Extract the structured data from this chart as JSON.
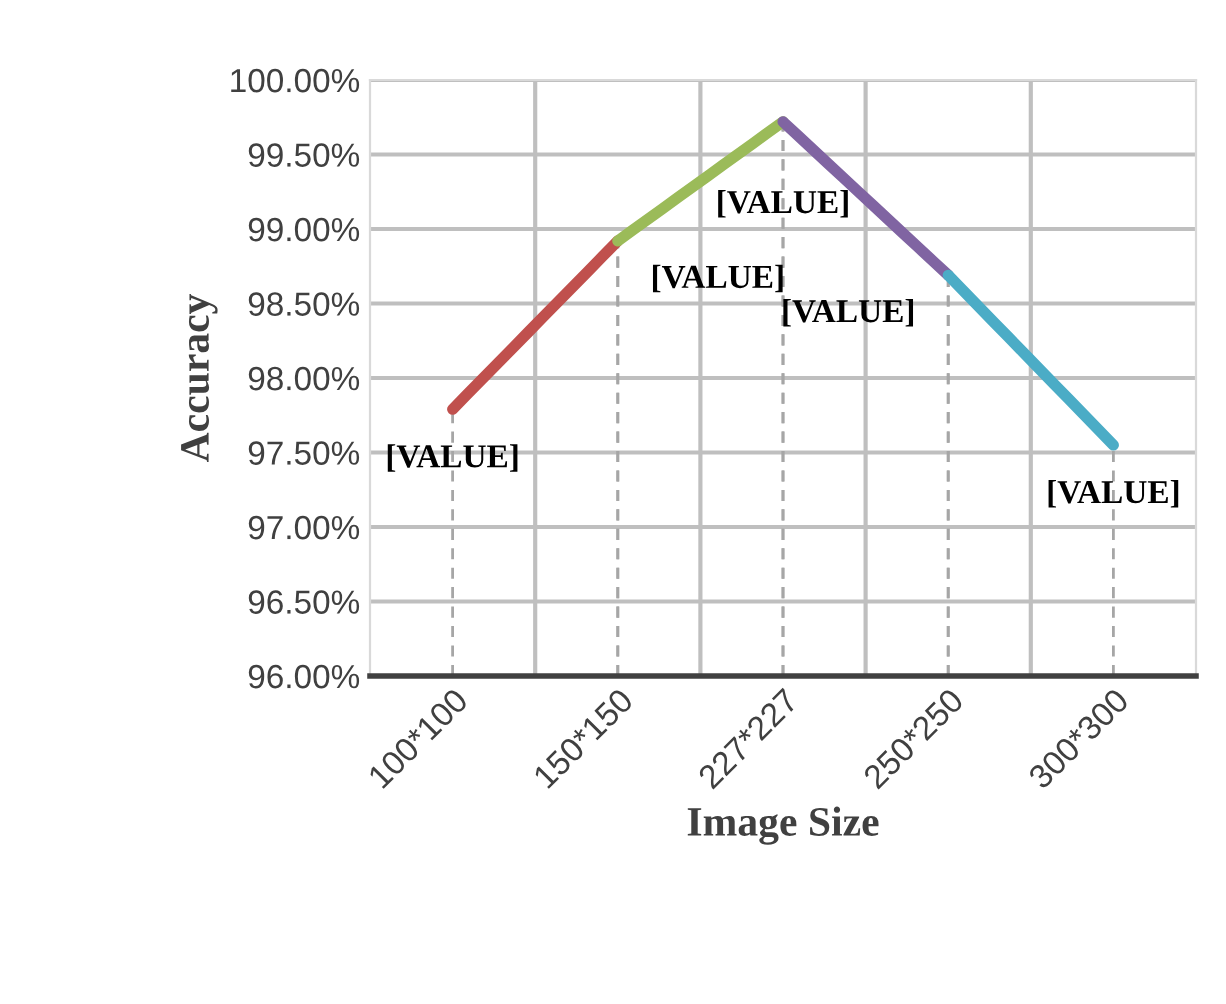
{
  "chart_data": {
    "type": "line",
    "xlabel": "Image Size",
    "ylabel": "Accuracy",
    "categories": [
      "100*100",
      "150*150",
      "227*227",
      "250*250",
      "300*300"
    ],
    "series": [
      {
        "values": [
          97.79,
          98.92,
          null,
          null,
          null
        ],
        "color": "#c0504d",
        "value_labels": [
          "[VALUE]",
          "[VALUE]",
          null,
          null,
          null
        ]
      },
      {
        "values": [
          null,
          98.92,
          99.72,
          null,
          null
        ],
        "color": "#9bbb59",
        "value_labels": [
          null,
          null,
          "[VALUE]",
          null,
          null
        ]
      },
      {
        "values": [
          null,
          null,
          99.72,
          98.69,
          null
        ],
        "color": "#8064a2",
        "value_labels": [
          null,
          null,
          null,
          "[VALUE]",
          null
        ]
      },
      {
        "values": [
          null,
          null,
          null,
          98.69,
          97.55
        ],
        "color": "#4bacc6",
        "value_labels": [
          null,
          null,
          null,
          null,
          "[VALUE]"
        ]
      }
    ],
    "ylim": [
      96,
      100
    ],
    "yticks": [
      {
        "value": 96,
        "label": "96.00%"
      },
      {
        "value": 96.5,
        "label": "96.50%"
      },
      {
        "value": 97,
        "label": "97.00%"
      },
      {
        "value": 97.5,
        "label": "97.50%"
      },
      {
        "value": 98,
        "label": "98.00%"
      },
      {
        "value": 98.5,
        "label": "98.50%"
      },
      {
        "value": 99,
        "label": "99.00%"
      },
      {
        "value": 99.5,
        "label": "99.50%"
      },
      {
        "value": 100,
        "label": "100.00%"
      }
    ],
    "grid": true,
    "marker": "none",
    "line_style": "solid"
  }
}
